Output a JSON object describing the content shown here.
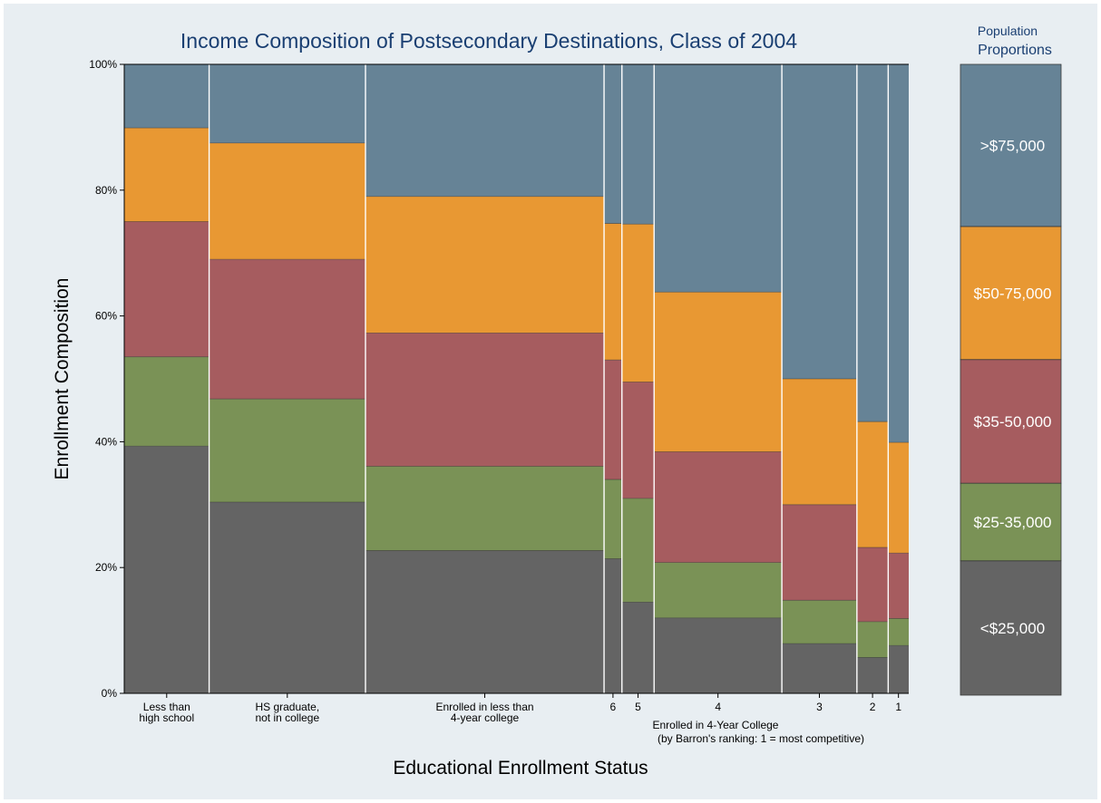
{
  "chart_data": {
    "type": "mosaic",
    "title": "Income Composition of Postsecondary Destinations, Class of 2004",
    "xlabel": "Educational Enrollment Status",
    "ylabel": "Enrollment Composition",
    "ylim": [
      0,
      100
    ],
    "yticks": [
      "0%",
      "20%",
      "40%",
      "60%",
      "80%",
      "100%"
    ],
    "x_group_label": "Enrolled in 4-Year College",
    "x_group_sublabel": "(by Barron's ranking: 1 = most competitive)",
    "income_groups": [
      {
        "name": "<$25,000",
        "color": "#646464"
      },
      {
        "name": "$25-35,000",
        "color": "#7a9256"
      },
      {
        "name": "$35-50,000",
        "color": "#a65c5f"
      },
      {
        "name": "$50-75,000",
        "color": "#e89833"
      },
      {
        "name": ">$75,000",
        "color": "#668396"
      }
    ],
    "categories": [
      {
        "label_line1": "Less than",
        "label_line2": "high school",
        "width_share": 9.5,
        "cumulative_percent": [
          39.3,
          53.5,
          75.0,
          89.9,
          100
        ]
      },
      {
        "label_line1": "HS graduate,",
        "label_line2": "not in college",
        "width_share": 17.5,
        "cumulative_percent": [
          30.4,
          46.8,
          69.0,
          87.5,
          100
        ]
      },
      {
        "label_line1": "Enrolled in less than",
        "label_line2": "4-year college",
        "width_share": 26.7,
        "cumulative_percent": [
          22.7,
          36.1,
          57.3,
          79.0,
          100
        ]
      },
      {
        "label_line1": "6",
        "label_line2": "",
        "width_share": 2.0,
        "cumulative_percent": [
          21.4,
          34.0,
          53.0,
          74.7,
          100
        ]
      },
      {
        "label_line1": "5",
        "label_line2": "",
        "width_share": 3.6,
        "cumulative_percent": [
          14.5,
          31.0,
          49.5,
          74.6,
          100
        ]
      },
      {
        "label_line1": "4",
        "label_line2": "",
        "width_share": 14.3,
        "cumulative_percent": [
          12.0,
          20.8,
          38.4,
          63.8,
          100
        ]
      },
      {
        "label_line1": "3",
        "label_line2": "",
        "width_share": 8.4,
        "cumulative_percent": [
          7.9,
          14.8,
          30.0,
          50.0,
          100
        ]
      },
      {
        "label_line1": "2",
        "label_line2": "",
        "width_share": 3.5,
        "cumulative_percent": [
          5.7,
          11.4,
          23.2,
          43.2,
          100
        ]
      },
      {
        "label_line1": "1",
        "label_line2": "",
        "width_share": 2.3,
        "cumulative_percent": [
          7.6,
          11.9,
          22.3,
          39.9,
          100
        ]
      }
    ],
    "legend": {
      "title_line1": "Population",
      "title_line2": "Proportions",
      "cumulative_percent": [
        21.3,
        33.6,
        53.2,
        74.3,
        100
      ],
      "labels": [
        "<$25,000",
        "$25-35,000",
        "$35-50,000",
        "$50-75,000",
        ">$75,000"
      ]
    }
  }
}
